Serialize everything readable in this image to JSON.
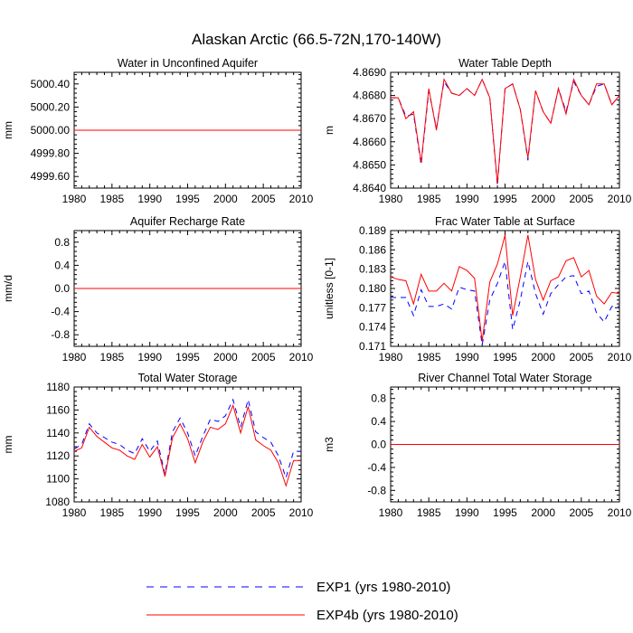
{
  "figure": {
    "title": "Alaskan Arctic (66.5-72N,170-140W)"
  },
  "legend": {
    "items": [
      {
        "label": "EXP1 (yrs 1980-2010)",
        "color": "#0000ff",
        "dash": "dashed"
      },
      {
        "label": "EXP4b (yrs 1980-2010)",
        "color": "#ff0000",
        "dash": "solid"
      }
    ]
  },
  "chart_data": [
    {
      "type": "line",
      "title": "Water in Unconfined Aquifer",
      "ylabel": "mm",
      "xlim": [
        1980,
        2010
      ],
      "ylim": [
        4999.5,
        5000.5
      ],
      "xticks": [
        1980,
        1985,
        1990,
        1995,
        2000,
        2005,
        2010
      ],
      "yticks": [
        4999.6,
        4999.8,
        5000.0,
        5000.2,
        5000.4
      ],
      "ytick_labels": [
        "4999.60",
        "4999.80",
        "5000.00",
        "5000.20",
        "5000.40"
      ],
      "x": [
        1980,
        1981,
        1982,
        1983,
        1984,
        1985,
        1986,
        1987,
        1988,
        1989,
        1990,
        1991,
        1992,
        1993,
        1994,
        1995,
        1996,
        1997,
        1998,
        1999,
        2000,
        2001,
        2002,
        2003,
        2004,
        2005,
        2006,
        2007,
        2008,
        2009,
        2010
      ],
      "series": [
        {
          "color": "#0000ff",
          "dash": "dashed",
          "values": [
            5000,
            5000,
            5000,
            5000,
            5000,
            5000,
            5000,
            5000,
            5000,
            5000,
            5000,
            5000,
            5000,
            5000,
            5000,
            5000,
            5000,
            5000,
            5000,
            5000,
            5000,
            5000,
            5000,
            5000,
            5000,
            5000,
            5000,
            5000,
            5000,
            5000,
            5000
          ]
        },
        {
          "color": "#ff0000",
          "dash": "solid",
          "values": [
            5000,
            5000,
            5000,
            5000,
            5000,
            5000,
            5000,
            5000,
            5000,
            5000,
            5000,
            5000,
            5000,
            5000,
            5000,
            5000,
            5000,
            5000,
            5000,
            5000,
            5000,
            5000,
            5000,
            5000,
            5000,
            5000,
            5000,
            5000,
            5000,
            5000,
            5000
          ]
        }
      ]
    },
    {
      "type": "line",
      "title": "Water Table Depth",
      "ylabel": "m",
      "xlim": [
        1980,
        2010
      ],
      "ylim": [
        4.864,
        4.869
      ],
      "xticks": [
        1980,
        1985,
        1990,
        1995,
        2000,
        2005,
        2010
      ],
      "yticks": [
        4.864,
        4.865,
        4.866,
        4.867,
        4.868,
        4.869
      ],
      "ytick_labels": [
        "4.8640",
        "4.8650",
        "4.8660",
        "4.8670",
        "4.8680",
        "4.8690"
      ],
      "x": [
        1980,
        1981,
        1982,
        1983,
        1984,
        1985,
        1986,
        1987,
        1988,
        1989,
        1990,
        1991,
        1992,
        1993,
        1994,
        1995,
        1996,
        1997,
        1998,
        1999,
        2000,
        2001,
        2002,
        2003,
        2004,
        2005,
        2006,
        2007,
        2008,
        2009,
        2010
      ],
      "series": [
        {
          "color": "#0000ff",
          "dash": "dashed",
          "values": [
            4.8679,
            4.8679,
            4.8671,
            4.8672,
            4.865,
            4.8682,
            4.8666,
            4.8686,
            4.8681,
            4.868,
            4.8683,
            4.868,
            4.8687,
            4.8679,
            4.8641,
            4.8683,
            4.8685,
            4.8674,
            4.8652,
            4.8682,
            4.8673,
            4.8668,
            4.8683,
            4.8673,
            4.8686,
            4.868,
            4.8676,
            4.8684,
            4.8685,
            4.8676,
            4.868
          ]
        },
        {
          "color": "#ff0000",
          "dash": "solid",
          "values": [
            4.8679,
            4.8679,
            4.867,
            4.8673,
            4.8651,
            4.8683,
            4.8665,
            4.8687,
            4.8681,
            4.868,
            4.8683,
            4.868,
            4.8687,
            4.8679,
            4.8642,
            4.8683,
            4.8685,
            4.8674,
            4.8653,
            4.8682,
            4.8673,
            4.8668,
            4.8683,
            4.8672,
            4.8687,
            4.868,
            4.8676,
            4.8685,
            4.8685,
            4.8676,
            4.868
          ]
        }
      ]
    },
    {
      "type": "line",
      "title": "Aquifer Recharge Rate",
      "ylabel": "mm/d",
      "xlim": [
        1980,
        2010
      ],
      "ylim": [
        -1,
        1
      ],
      "xticks": [
        1980,
        1985,
        1990,
        1995,
        2000,
        2005,
        2010
      ],
      "yticks": [
        -0.8,
        -0.4,
        0.0,
        0.4,
        0.8
      ],
      "ytick_labels": [
        "-0.8",
        "-0.4",
        "0.0",
        "0.4",
        "0.8"
      ],
      "x": [
        1980,
        1981,
        1982,
        1983,
        1984,
        1985,
        1986,
        1987,
        1988,
        1989,
        1990,
        1991,
        1992,
        1993,
        1994,
        1995,
        1996,
        1997,
        1998,
        1999,
        2000,
        2001,
        2002,
        2003,
        2004,
        2005,
        2006,
        2007,
        2008,
        2009,
        2010
      ],
      "series": [
        {
          "color": "#0000ff",
          "dash": "dashed",
          "values": [
            0,
            0,
            0,
            0,
            0,
            0,
            0,
            0,
            0,
            0,
            0,
            0,
            0,
            0,
            0,
            0,
            0,
            0,
            0,
            0,
            0,
            0,
            0,
            0,
            0,
            0,
            0,
            0,
            0,
            0,
            0
          ]
        },
        {
          "color": "#ff0000",
          "dash": "solid",
          "values": [
            0,
            0,
            0,
            0,
            0,
            0,
            0,
            0,
            0,
            0,
            0,
            0,
            0,
            0,
            0,
            0,
            0,
            0,
            0,
            0,
            0,
            0,
            0,
            0,
            0,
            0,
            0,
            0,
            0,
            0,
            0
          ]
        }
      ]
    },
    {
      "type": "line",
      "title": "Frac Water Table at Surface",
      "ylabel": "unitless [0-1]",
      "xlim": [
        1980,
        2010
      ],
      "ylim": [
        0.171,
        0.189
      ],
      "xticks": [
        1980,
        1985,
        1990,
        1995,
        2000,
        2005,
        2010
      ],
      "yticks": [
        0.171,
        0.174,
        0.177,
        0.18,
        0.183,
        0.186,
        0.189
      ],
      "ytick_labels": [
        "0.171",
        "0.174",
        "0.177",
        "0.180",
        "0.183",
        "0.186",
        "0.189"
      ],
      "x": [
        1980,
        1981,
        1982,
        1983,
        1984,
        1985,
        1986,
        1987,
        1988,
        1989,
        1990,
        1991,
        1992,
        1993,
        1994,
        1995,
        1996,
        1997,
        1998,
        1999,
        2000,
        2001,
        2002,
        2003,
        2004,
        2005,
        2006,
        2007,
        2008,
        2009,
        2010
      ],
      "series": [
        {
          "color": "#0000ff",
          "dash": "dashed",
          "values": [
            0.1786,
            0.1786,
            0.1786,
            0.1758,
            0.1798,
            0.1772,
            0.1772,
            0.1776,
            0.1768,
            0.1802,
            0.1798,
            0.1796,
            0.1712,
            0.1782,
            0.1808,
            0.1842,
            0.1736,
            0.1782,
            0.1842,
            0.1792,
            0.176,
            0.1792,
            0.1806,
            0.1818,
            0.182,
            0.1792,
            0.1796,
            0.1762,
            0.1748,
            0.1772,
            0.1772
          ]
        },
        {
          "color": "#ff0000",
          "dash": "solid",
          "values": [
            0.1818,
            0.1814,
            0.1812,
            0.1776,
            0.1822,
            0.1796,
            0.1796,
            0.1808,
            0.1796,
            0.1834,
            0.1828,
            0.1816,
            0.1718,
            0.181,
            0.1838,
            0.1883,
            0.1758,
            0.1818,
            0.1883,
            0.1814,
            0.1782,
            0.1812,
            0.1818,
            0.1843,
            0.1848,
            0.1818,
            0.1828,
            0.1788,
            0.1776,
            0.1794,
            0.1792
          ]
        }
      ]
    },
    {
      "type": "line",
      "title": "Total Water Storage",
      "ylabel": "mm",
      "xlim": [
        1980,
        2010
      ],
      "ylim": [
        1080,
        1180
      ],
      "xticks": [
        1980,
        1985,
        1990,
        1995,
        2000,
        2005,
        2010
      ],
      "yticks": [
        1080,
        1100,
        1120,
        1140,
        1160,
        1180
      ],
      "ytick_labels": [
        "1080",
        "1100",
        "1120",
        "1140",
        "1160",
        "1180"
      ],
      "x": [
        1980,
        1981,
        1982,
        1983,
        1984,
        1985,
        1986,
        1987,
        1988,
        1989,
        1990,
        1991,
        1992,
        1993,
        1994,
        1995,
        1996,
        1997,
        1998,
        1999,
        2000,
        2001,
        2002,
        2003,
        2004,
        2005,
        2006,
        2007,
        2008,
        2009,
        2010
      ],
      "series": [
        {
          "color": "#0000ff",
          "dash": "dashed",
          "values": [
            1126,
            1130,
            1148,
            1140,
            1136,
            1132,
            1130,
            1125,
            1122,
            1135,
            1124,
            1133,
            1104,
            1141,
            1153,
            1140,
            1120,
            1137,
            1152,
            1150,
            1155,
            1169,
            1145,
            1169,
            1141,
            1136,
            1132,
            1120,
            1101,
            1124,
            1124
          ]
        },
        {
          "color": "#ff0000",
          "dash": "solid",
          "values": [
            1124,
            1127,
            1145,
            1137,
            1132,
            1127,
            1125,
            1120,
            1117,
            1130,
            1119,
            1128,
            1102,
            1136,
            1148,
            1135,
            1114,
            1132,
            1145,
            1143,
            1148,
            1164,
            1140,
            1163,
            1134,
            1129,
            1125,
            1114,
            1094,
            1116,
            1116
          ]
        }
      ]
    },
    {
      "type": "line",
      "title": "River Channel Total Water Storage",
      "ylabel": "m3",
      "xlim": [
        1980,
        2010
      ],
      "ylim": [
        -1,
        1
      ],
      "xticks": [
        1980,
        1985,
        1990,
        1995,
        2000,
        2005,
        2010
      ],
      "yticks": [
        -0.8,
        -0.4,
        0.0,
        0.4,
        0.8
      ],
      "ytick_labels": [
        "-0.8",
        "-0.4",
        "0.0",
        "0.4",
        "0.8"
      ],
      "x": [
        1980,
        1981,
        1982,
        1983,
        1984,
        1985,
        1986,
        1987,
        1988,
        1989,
        1990,
        1991,
        1992,
        1993,
        1994,
        1995,
        1996,
        1997,
        1998,
        1999,
        2000,
        2001,
        2002,
        2003,
        2004,
        2005,
        2006,
        2007,
        2008,
        2009,
        2010
      ],
      "series": [
        {
          "color": "#0000ff",
          "dash": "dashed",
          "values": [
            0,
            0,
            0,
            0,
            0,
            0,
            0,
            0,
            0,
            0,
            0,
            0,
            0,
            0,
            0,
            0,
            0,
            0,
            0,
            0,
            0,
            0,
            0,
            0,
            0,
            0,
            0,
            0,
            0,
            0,
            0
          ]
        },
        {
          "color": "#ff0000",
          "dash": "solid",
          "values": [
            0,
            0,
            0,
            0,
            0,
            0,
            0,
            0,
            0,
            0,
            0,
            0,
            0,
            0,
            0,
            0,
            0,
            0,
            0,
            0,
            0,
            0,
            0,
            0,
            0,
            0,
            0,
            0,
            0,
            0,
            0
          ]
        }
      ]
    }
  ]
}
